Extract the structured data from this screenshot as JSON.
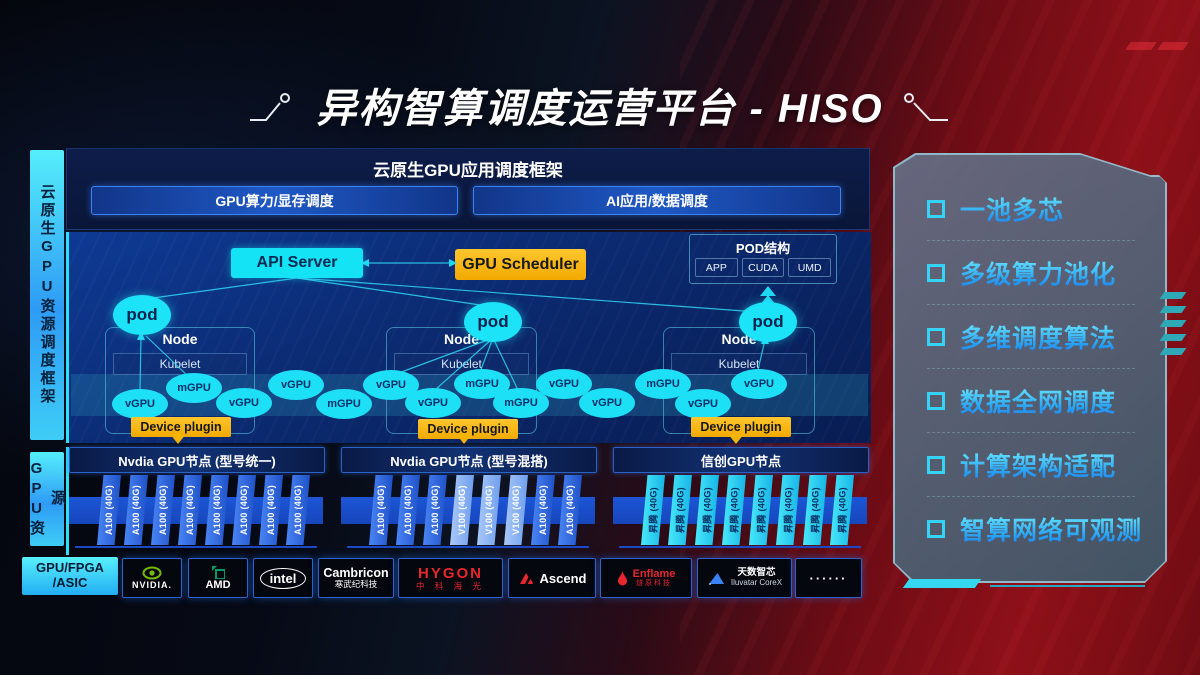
{
  "title": "异构智算调度运营平台 - HISO",
  "sidebar": {
    "frame_label": "云原生GPU资源调度框架",
    "gpu_label": "GPU资源",
    "hw_label": "GPU/FPGA /ASIC"
  },
  "top_panel": {
    "title": "云原生GPU应用调度框架",
    "left_box": "GPU算力/显存调度",
    "right_box": "AI应用/数据调度"
  },
  "scheduler": {
    "api_server": "API Server",
    "gpu_scheduler": "GPU Scheduler",
    "pod_box": {
      "title": "POD结构",
      "items": [
        "APP",
        "CUDA",
        "UMD"
      ]
    },
    "pod_label": "pod",
    "node_label": "Node",
    "kubelet_label": "Kubelet",
    "device_plugin_label": "Device plugin",
    "gpu_ovals": [
      "vGPU",
      "mGPU",
      "vGPU",
      "vGPU",
      "mGPU",
      "vGPU",
      "vGPU",
      "mGPU",
      "mGPU",
      "vGPU",
      "vGPU",
      "mGPU",
      "vGPU",
      "vGPU"
    ]
  },
  "gpu_nodes": {
    "groups": [
      {
        "title": "Nvdia GPU节点 (型号统一)",
        "cards": [
          "A100 (40G)",
          "A100 (40G)",
          "A100 (40G)",
          "A100 (40G)",
          "A100 (40G)",
          "A100 (40G)",
          "A100 (40G)",
          "A100 (40G)"
        ]
      },
      {
        "title": "Nvdia GPU节点 (型号混搭)",
        "cards": [
          "A100 (40G)",
          "A100 (40G)",
          "A100 (40G)",
          "V100 (40G)",
          "V100 (40G)",
          "V100 (40G)",
          "A100 (40G)",
          "A100 (40G)"
        ]
      },
      {
        "title": "信创GPU节点",
        "cards": [
          "昇腾 (40G)",
          "昇腾 (40G)",
          "昇腾 (40G)",
          "昇腾 (40G)",
          "昇腾 (40G)",
          "昇腾 (40G)",
          "昇腾 (40G)",
          "昇腾 (40G)"
        ]
      }
    ]
  },
  "vendors": [
    {
      "name": "NVIDIA.",
      "icon": "nvidia-eye-icon"
    },
    {
      "name": "AMD",
      "icon": "amd-square-icon"
    },
    {
      "name": "intel",
      "icon": "intel-oval-icon"
    },
    {
      "name": "Cambricon",
      "sub": "寒武纪科技"
    },
    {
      "name": "HYGON",
      "sub": "中 科 海 光"
    },
    {
      "name": "Ascend",
      "icon": "ascend-icon"
    },
    {
      "name": "Enflame",
      "sub": "燧原科技",
      "icon": "flame-icon"
    },
    {
      "name": "天数智芯",
      "sub": "Iluvatar CoreX",
      "icon": "triangle-icon"
    },
    {
      "name": "······"
    }
  ],
  "features": [
    "一池多芯",
    "多级算力池化",
    "多维调度算法",
    "数据全网调度",
    "计算架构适配",
    "智算网络可观测"
  ],
  "colors": {
    "accent_cyan": "#1ce3f8",
    "accent_gold": "#f5b301",
    "card_blue": "#2e6ef2",
    "card_light_blue": "#8fb6f4",
    "bg_red": "#8e1019",
    "bg_navy": "#0b2a70",
    "nvidia_green": "#76b900",
    "vendor_red": "#e8262d"
  }
}
